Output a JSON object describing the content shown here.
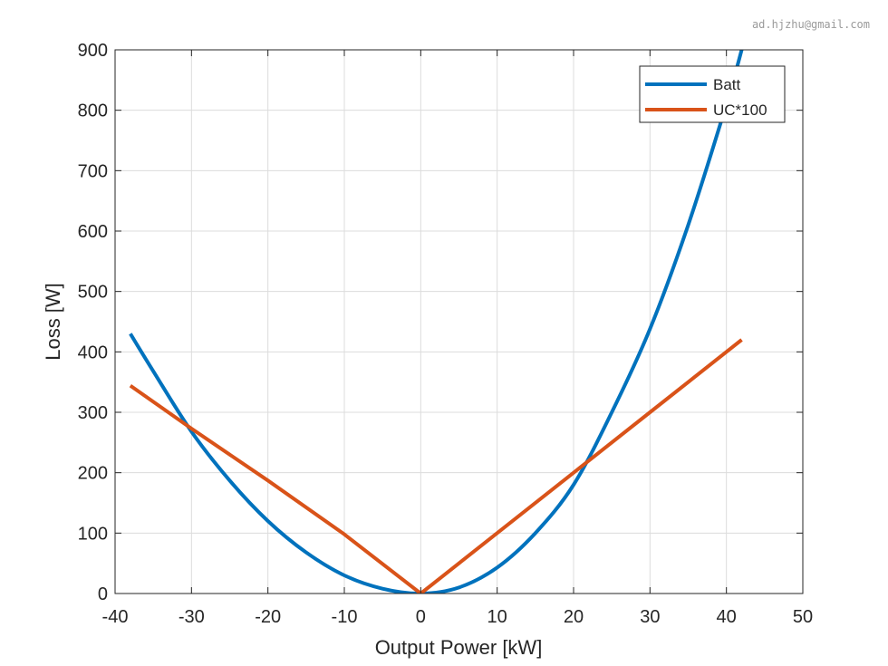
{
  "watermark": "ad.hjzhu@gmail.com",
  "chart_data": {
    "type": "line",
    "title": "",
    "xlabel": "Output Power [kW]",
    "ylabel": "Loss [W]",
    "xlim": [
      -40,
      50
    ],
    "ylim": [
      0,
      900
    ],
    "xticks": [
      -40,
      -30,
      -20,
      -10,
      0,
      10,
      20,
      30,
      40,
      50
    ],
    "yticks": [
      0,
      100,
      200,
      300,
      400,
      500,
      600,
      700,
      800,
      900
    ],
    "xtick_labels": [
      "-40",
      "-30",
      "-20",
      "-10",
      "0",
      "10",
      "20",
      "30",
      "40",
      "50"
    ],
    "ytick_labels": [
      "0",
      "100",
      "200",
      "300",
      "400",
      "500",
      "600",
      "700",
      "800",
      "900"
    ],
    "grid": true,
    "legend_position": "top-right",
    "series": [
      {
        "name": "Batt",
        "color": "#0072BD",
        "x": [
          -38,
          -35,
          -30,
          -25,
          -20,
          -15,
          -10,
          -5,
          0,
          5,
          10,
          15,
          20,
          25,
          30,
          35,
          40,
          42
        ],
        "y": [
          430,
          368,
          268,
          187,
          120,
          68,
          30,
          8,
          0,
          10,
          43,
          100,
          180,
          300,
          438,
          610,
          810,
          900
        ]
      },
      {
        "name": "UC*100",
        "color": "#D95319",
        "x": [
          -38,
          -30,
          -20,
          -10,
          0,
          10,
          20,
          30,
          42
        ],
        "y": [
          344,
          273,
          187,
          98,
          0,
          100,
          200,
          300,
          420
        ]
      }
    ]
  }
}
